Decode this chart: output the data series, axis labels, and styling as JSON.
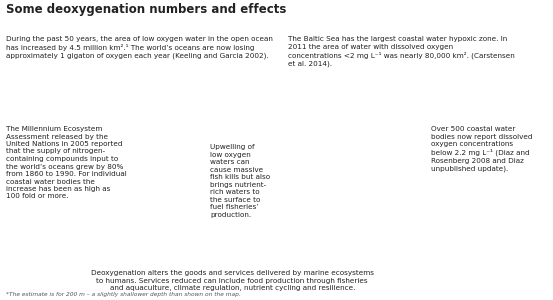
{
  "title": "Some deoxygenation numbers and effects",
  "title_fontsize": 8.5,
  "title_color": "#222222",
  "background_color": "#ffffff",
  "ocean_color": "#daeef5",
  "land_color": "#d8d8d8",
  "land_edge_color": "#aaaaaa",
  "omz_color": "#7ecbdc",
  "hypoxia_color": "#cc1111",
  "dark_omz_color": "#2a6e8a",
  "footnote": "*The estimate is for 200 m – a slightly shallower depth than shown on the map.",
  "bottom_text": "Deoxygenation alters the goods and services delivered by marine ecosystems\nto humans. Services reduced can include food production through fisheries\nand aquaculture, climate regulation, nutrient cycling and resilience.",
  "ann_top_left": "During the past 50 years, the area of low oxygen water in the open ocean\nhas increased by 4.5 million km².¹ The world’s oceans are now losing\napproximately 1 gigaton of oxygen each year (Keeling and Garcia 2002).",
  "ann_top_right": "The Baltic Sea has the largest coastal water hypoxic zone. In\n2011 the area of water with dissolved oxygen\nconcentrations <2 mg L⁻¹ was nearly 80,000 km². (Carstensen\net al. 2014).",
  "ann_mid_right": "Over 500 coastal water\nbodies now report dissolved\noxygen concentrations\nbelow 2.2 mg L⁻¹ (Diaz and\nRosenberg 2008 and Diaz\nunpublished update).",
  "ann_mid_left": "The Millennium Ecosystem\nAssessment released by the\nUnited Nations in 2005 reported\nthat the supply of nitrogen-\ncontaining compounds input to\nthe world’s oceans grew by 80%\nfrom 1860 to 1990. For individual\ncoastal water bodies the\nincrease has been as high as\n100 fold or more.",
  "ann_center": "Upwelling of\nlow oxygen\nwaters can\ncause massive\nfish kills but also\nbrings nutrient-\nrich waters to\nthe surface to\nfuel fisheries’\nproduction.",
  "omz_seed": 42
}
